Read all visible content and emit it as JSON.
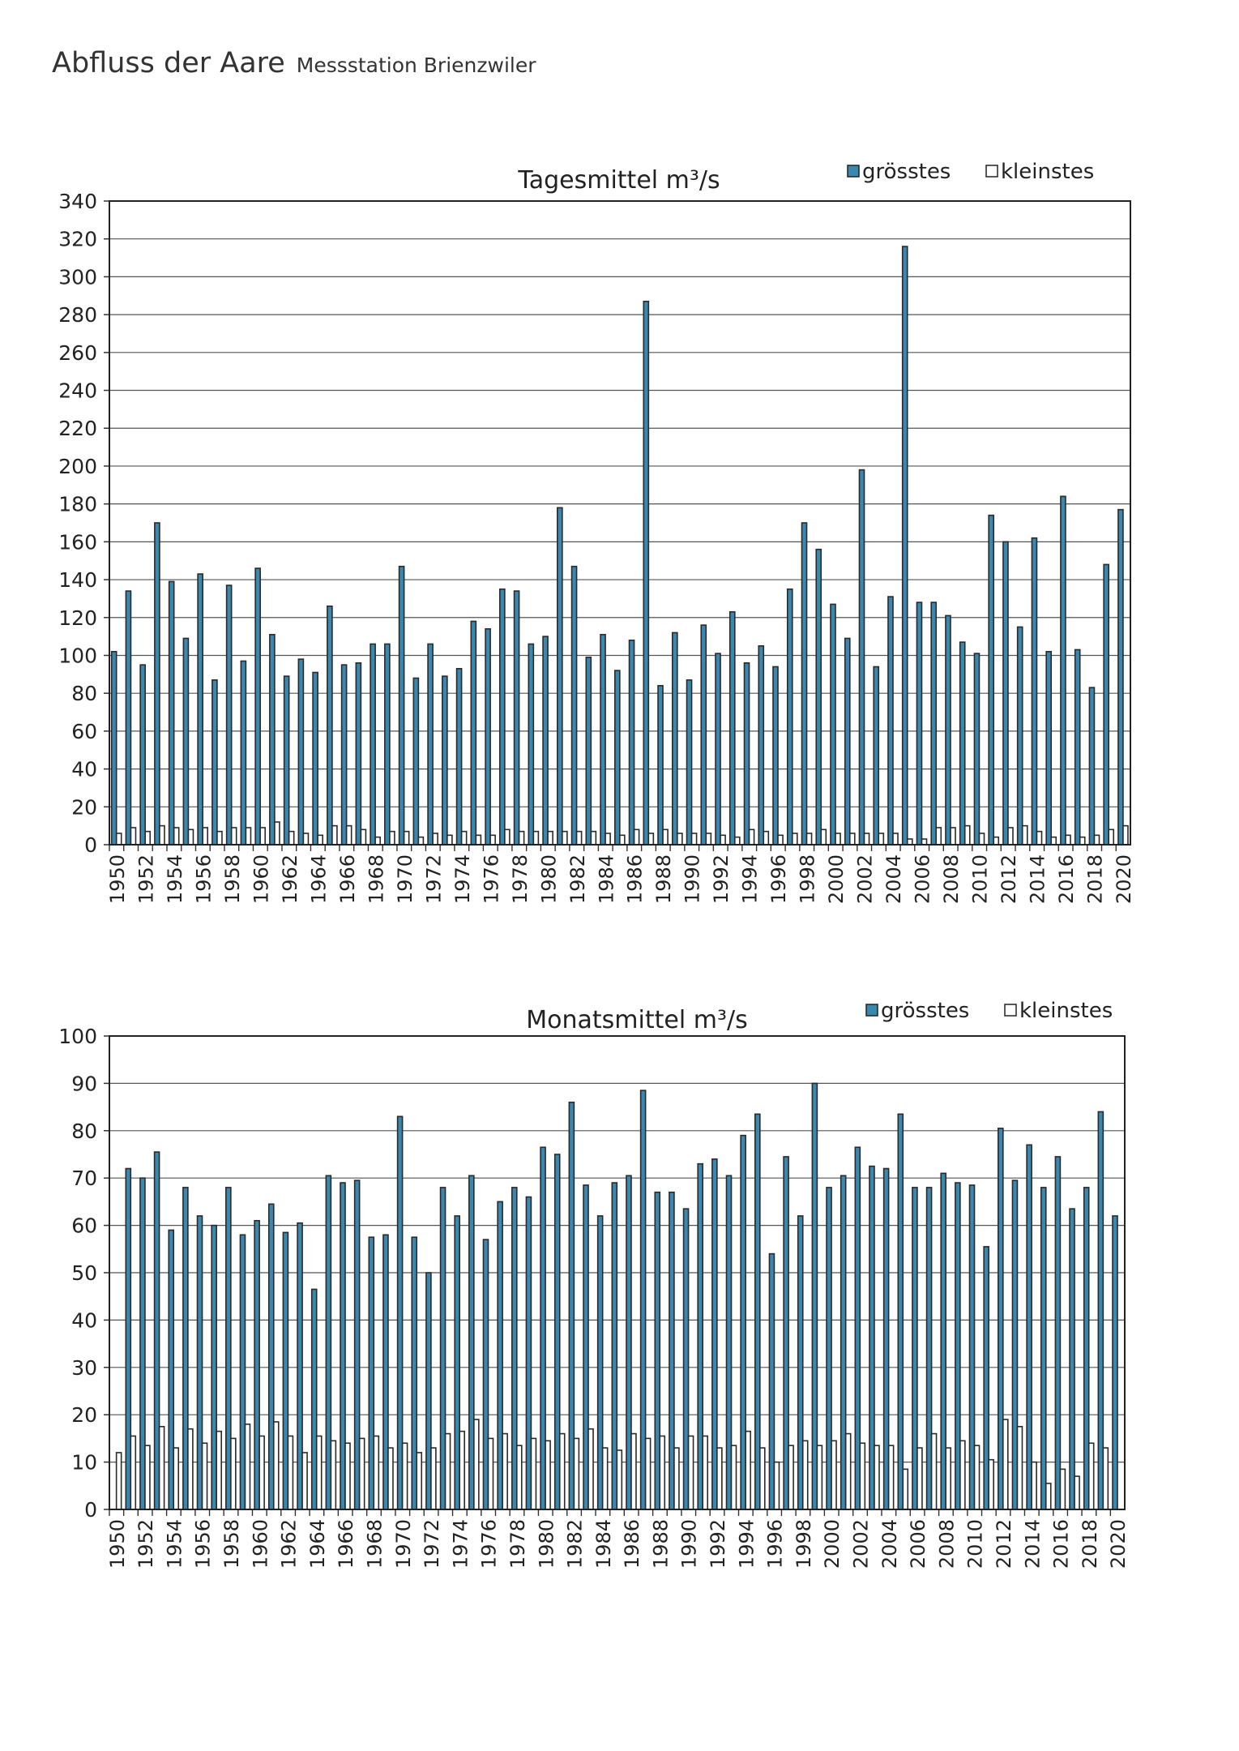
{
  "header": {
    "title": "Abfluss der Aare",
    "subtitle": "Messstation Brienzwiler"
  },
  "chart_data": [
    {
      "type": "bar",
      "title": "Tagesmittel m³/s",
      "xlabel": "",
      "ylabel": "",
      "ylim": [
        0,
        340
      ],
      "ystep": 20,
      "grid": true,
      "legend_position": "top-right",
      "x_start": 1950,
      "x_end": 2020,
      "x_label_step": 2,
      "series": [
        {
          "name": "grösstes",
          "color": "#3a87b0",
          "values": [
            102,
            134,
            95,
            170,
            139,
            109,
            143,
            87,
            137,
            97,
            146,
            111,
            89,
            98,
            91,
            126,
            95,
            96,
            106,
            106,
            147,
            88,
            106,
            89,
            93,
            118,
            114,
            135,
            134,
            106,
            110,
            178,
            147,
            99,
            111,
            92,
            108,
            287,
            84,
            112,
            87,
            116,
            101,
            123,
            96,
            105,
            94,
            135,
            170,
            156,
            127,
            109,
            198,
            94,
            131,
            316,
            128,
            128,
            121,
            107,
            101,
            174,
            160,
            115,
            162,
            102,
            184,
            103,
            83,
            148,
            177
          ]
        },
        {
          "name": "kleinstes",
          "color": "#ffffff",
          "values": [
            6,
            9,
            7,
            10,
            9,
            8,
            9,
            7,
            9,
            9,
            9,
            12,
            7,
            6,
            5,
            10,
            10,
            8,
            4,
            7,
            7,
            4,
            6,
            5,
            7,
            5,
            5,
            8,
            7,
            7,
            7,
            7,
            7,
            7,
            6,
            5,
            8,
            6,
            8,
            6,
            6,
            6,
            5,
            4,
            8,
            7,
            5,
            6,
            6,
            8,
            6,
            6,
            6,
            6,
            6,
            3,
            3,
            9,
            9,
            10,
            6,
            4,
            9,
            10,
            7,
            4,
            5,
            4,
            5,
            8,
            10
          ]
        }
      ]
    },
    {
      "type": "bar",
      "title": "Monatsmittel m³/s",
      "xlabel": "",
      "ylabel": "",
      "ylim": [
        0,
        100
      ],
      "ystep": 10,
      "grid": true,
      "legend_position": "top-right",
      "x_start": 1950,
      "x_end": 2020,
      "x_label_step": 2,
      "series": [
        {
          "name": "grösstes",
          "color": "#3a87b0",
          "values": [
            null,
            72,
            70,
            75.5,
            59,
            68,
            62,
            60,
            68,
            58,
            61,
            64.5,
            58.5,
            60.5,
            46.5,
            70.5,
            69,
            69.5,
            57.5,
            58,
            83,
            57.5,
            50,
            68,
            62,
            70.5,
            57,
            65,
            68,
            66,
            76.5,
            75,
            86,
            68.5,
            62,
            69,
            70.5,
            88.5,
            67,
            67,
            63.5,
            73,
            74,
            70.5,
            79,
            83.5,
            54,
            74.5,
            62,
            90,
            68,
            70.5,
            76.5,
            72.5,
            72,
            83.5,
            68,
            68,
            71,
            69,
            68.5,
            55.5,
            80.5,
            69.5,
            77,
            68,
            74.5,
            63.5,
            68,
            84,
            62
          ]
        },
        {
          "name": "kleinstes",
          "color": "#ffffff",
          "values": [
            12,
            15.5,
            13.5,
            17.5,
            13,
            17,
            14,
            16.5,
            15,
            18,
            15.5,
            18.5,
            15.5,
            12,
            15.5,
            14.5,
            14,
            15,
            15.5,
            13,
            14,
            12,
            13,
            16,
            16.5,
            19,
            15,
            16,
            13.5,
            15,
            14.5,
            16,
            15,
            17,
            13,
            12.5,
            16,
            15,
            15.5,
            13,
            15.5,
            15.5,
            13,
            13.5,
            16.5,
            13,
            10,
            13.5,
            14.5,
            13.5,
            14.5,
            16,
            14,
            13.5,
            13.5,
            8.5,
            13,
            16,
            13,
            14.5,
            13.5,
            10.5,
            19,
            17.5,
            10,
            5.5,
            8.5,
            7,
            14,
            13,
            null
          ]
        }
      ]
    }
  ]
}
